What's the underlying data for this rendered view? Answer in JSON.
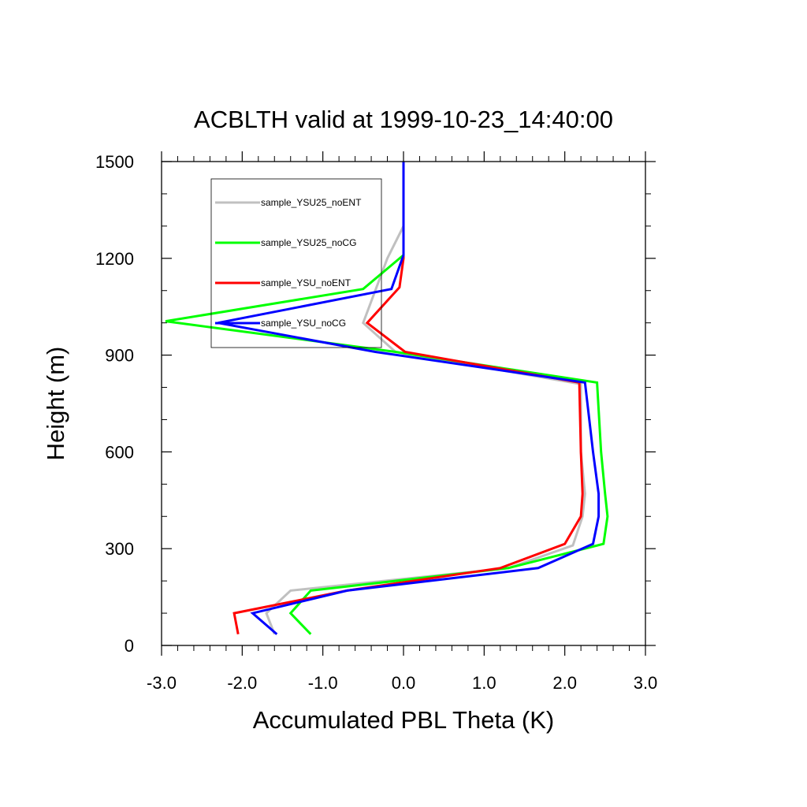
{
  "chart_data": {
    "type": "line",
    "title": "ACBLTH valid at 1999-10-23_14:40:00",
    "xlabel": "Accumulated PBL Theta (K)",
    "ylabel": "Height (m)",
    "xlim": [
      -3.0,
      3.0
    ],
    "ylim": [
      0,
      1500
    ],
    "xticks": [
      -3.0,
      -2.0,
      -1.0,
      0.0,
      1.0,
      2.0,
      3.0
    ],
    "xtick_labels": [
      "-3.0",
      "-2.0",
      "-1.0",
      "0.0",
      "1.0",
      "2.0",
      "3.0"
    ],
    "yticks": [
      0,
      300,
      600,
      900,
      1200,
      1500
    ],
    "ytick_labels": [
      "0",
      "300",
      "600",
      "900",
      "1200",
      "1500"
    ],
    "grid": false,
    "legend_position": "top-left",
    "series": [
      {
        "name": "sample_YSU25_noENT",
        "color": "#c0c0c0",
        "x": [
          -1.6,
          -1.7,
          -1.4,
          1.3,
          2.1,
          2.22,
          2.25,
          2.2,
          2.2,
          -0.1,
          -0.5,
          -0.35,
          -0.2,
          0.0,
          0.0,
          0.0
        ],
        "y": [
          35,
          100,
          170,
          240,
          310,
          400,
          470,
          600,
          810,
          910,
          1000,
          1100,
          1200,
          1300,
          1400,
          1500
        ]
      },
      {
        "name": "sample_YSU25_noCG",
        "color": "#00ff00",
        "x": [
          -1.15,
          -1.4,
          -1.15,
          1.3,
          2.48,
          2.53,
          2.5,
          2.45,
          2.4,
          -0.1,
          -2.95,
          -0.5,
          0.0,
          0.0,
          0.0,
          0.0
        ],
        "y": [
          35,
          100,
          170,
          240,
          315,
          400,
          470,
          600,
          815,
          910,
          1005,
          1105,
          1210,
          1300,
          1400,
          1500
        ]
      },
      {
        "name": "sample_YSU_noENT",
        "color": "#ff0000",
        "x": [
          -2.05,
          -2.1,
          -0.7,
          1.2,
          2.0,
          2.2,
          2.22,
          2.2,
          2.18,
          0.02,
          -0.45,
          -0.05,
          0.0,
          0.0,
          0.0,
          0.0
        ],
        "y": [
          35,
          100,
          170,
          240,
          315,
          400,
          470,
          600,
          815,
          910,
          1000,
          1110,
          1200,
          1300,
          1400,
          1500
        ]
      },
      {
        "name": "sample_YSU_noCG",
        "color": "#0000ff",
        "x": [
          -1.57,
          -1.87,
          -0.7,
          1.67,
          2.35,
          2.42,
          2.42,
          2.35,
          2.25,
          -0.35,
          -2.3,
          -0.15,
          0.0,
          0.0,
          0.0,
          0.0
        ],
        "y": [
          35,
          100,
          170,
          240,
          315,
          400,
          470,
          600,
          815,
          910,
          1000,
          1105,
          1210,
          1300,
          1400,
          1500
        ]
      }
    ]
  }
}
